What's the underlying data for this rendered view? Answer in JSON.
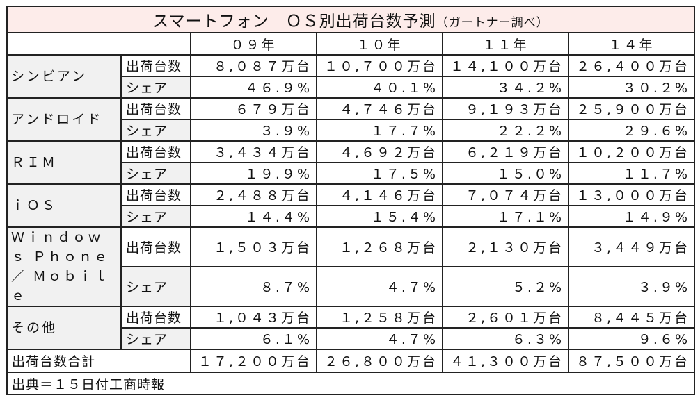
{
  "chart_data": {
    "type": "table",
    "title": "スマートフォン　ＯＳ別出荷台数予測",
    "title_note": "（ガートナー調べ）",
    "columns": [
      "０９年",
      "１０年",
      "１１年",
      "１４年"
    ],
    "metrics": {
      "units": "出荷台数",
      "share": "シェア"
    },
    "rows": [
      {
        "os": "シンビアン",
        "units": [
          "８,０８７万台",
          "１０,７００万台",
          "１４,１００万台",
          "２６,４００万台"
        ],
        "share": [
          "４６.９%",
          "４０.１%",
          "３４.２%",
          "３０.２%"
        ]
      },
      {
        "os": "アンドロイド",
        "units": [
          "６７９万台",
          "４,７４６万台",
          "９,１９３万台",
          "２５,９００万台"
        ],
        "share": [
          "３.９%",
          "１７.７%",
          "２２.２%",
          "２９.６%"
        ]
      },
      {
        "os": "ＲＩＭ",
        "units": [
          "３,４３４万台",
          "４,６９２万台",
          "６,２１９万台",
          "１０,２００万台"
        ],
        "share": [
          "１９.９%",
          "１７.５%",
          "１５.０%",
          "１１.７%"
        ]
      },
      {
        "os": "ｉＯＳ",
        "units": [
          "２,４８８万台",
          "４,１４６万台",
          "７,０７４万台",
          "１３,０００万台"
        ],
        "share": [
          "１４.４%",
          "１５.４%",
          "１７.１%",
          "１４.９%"
        ]
      },
      {
        "os": "Ｗｉｎｄｏｗｓ Ｐｈｏｎｅ／ Ｍｏｂｉｌｅ",
        "units": [
          "１,５０３万台",
          "１,２６８万台",
          "２,１３０万台",
          "３,４４９万台"
        ],
        "share": [
          "８.７%",
          "４.７%",
          "５.２%",
          "３.９%"
        ]
      },
      {
        "os": "その他",
        "units": [
          "１,０４３万台",
          "１,２５８万台",
          "２,６０１万台",
          "８,４４５万台"
        ],
        "share": [
          "６.１%",
          "４.７%",
          "６.３%",
          "９.６%"
        ]
      }
    ],
    "total": {
      "label": "出荷台数合計",
      "values": [
        "１７,２００万台",
        "２６,８００万台",
        "４１,３００万台",
        "８７,５００万台"
      ]
    },
    "source": "出典＝１５日付工商時報"
  },
  "colors": {
    "title_background": "#fdecea",
    "label_background": "#f1f1f1",
    "border": "#222222"
  }
}
